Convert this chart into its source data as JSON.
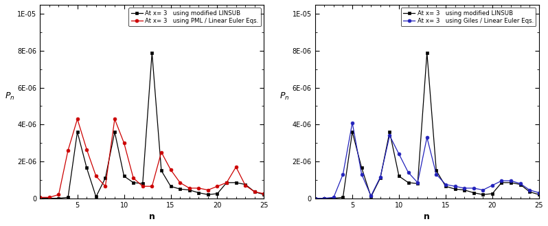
{
  "n_values": [
    1,
    2,
    3,
    4,
    5,
    6,
    7,
    8,
    9,
    10,
    11,
    12,
    13,
    14,
    15,
    16,
    17,
    18,
    19,
    20,
    21,
    22,
    23,
    24,
    25
  ],
  "black_series": [
    0.0,
    0.0,
    0.0,
    5e-08,
    3.6e-06,
    1.65e-06,
    8e-08,
    1.1e-06,
    3.6e-06,
    1.2e-06,
    8.5e-07,
    8e-07,
    7.9e-06,
    1.5e-06,
    6.5e-07,
    5e-07,
    4.5e-07,
    3e-07,
    2e-07,
    2.5e-07,
    8.5e-07,
    8.5e-07,
    7.5e-07,
    3.5e-07,
    2e-07
  ],
  "red_series": [
    5e-08,
    5e-08,
    2e-07,
    2.6e-06,
    4.3e-06,
    2.65e-06,
    1.2e-06,
    6.5e-07,
    4.3e-06,
    3e-06,
    1.1e-06,
    6.5e-07,
    6.5e-07,
    2.5e-06,
    1.55e-06,
    8.5e-07,
    5.5e-07,
    5.5e-07,
    4.5e-07,
    6.5e-07,
    8.5e-07,
    1.7e-06,
    7e-07,
    3.5e-07,
    2.5e-07
  ],
  "blue_series": [
    0.0,
    0.0,
    5e-08,
    1.3e-06,
    4.1e-06,
    1.3e-06,
    1.3e-07,
    1.15e-06,
    3.4e-06,
    2.4e-06,
    1.4e-06,
    8.5e-07,
    3.3e-06,
    1.3e-06,
    7.5e-07,
    6.5e-07,
    5.5e-07,
    5.5e-07,
    4.5e-07,
    7e-07,
    9.5e-07,
    9.5e-07,
    8e-07,
    4.5e-07,
    3e-07
  ],
  "legend1_label1": "At x= 3   using modified LINSUB",
  "legend1_label2": "At x= 3   using PML / Linear Euler Eqs.",
  "legend2_label1": "At x= 3   using modified LINSUB",
  "legend2_label2": "At x= 3   using Giles / Linear Euler Eqs.",
  "xlabel": "n",
  "ylabel": "$P_n$",
  "ylim": [
    0,
    1.05e-05
  ],
  "xlim": [
    1,
    25
  ],
  "yticks": [
    0,
    2e-06,
    4e-06,
    6e-06,
    8e-06,
    1e-05
  ],
  "ytick_labels": [
    "0",
    "2E-06",
    "4E-06",
    "6E-06",
    "8E-06",
    "1E-05"
  ],
  "xticks": [
    5,
    10,
    15,
    20,
    25
  ],
  "black_color": "#000000",
  "red_color": "#cc0000",
  "blue_color": "#2222bb",
  "background_color": "#ffffff"
}
